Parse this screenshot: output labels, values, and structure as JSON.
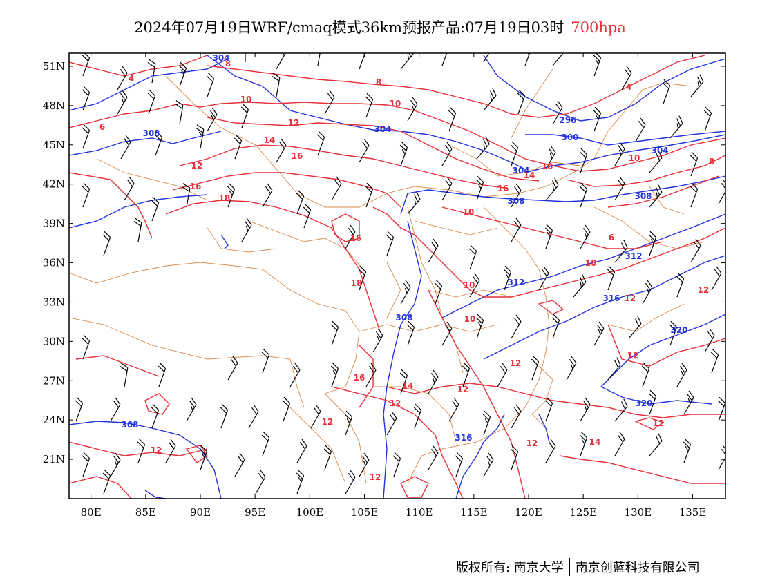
{
  "title": {
    "main": "2024年07月19日WRF/cmaq模式36km预报产品:07月19日03时",
    "level": "700hpa"
  },
  "axes": {
    "lon_labels": [
      "80E",
      "85E",
      "90E",
      "95E",
      "100E",
      "105E",
      "110E",
      "115E",
      "120E",
      "125E",
      "130E",
      "135E"
    ],
    "lat_labels": [
      "51N",
      "48N",
      "45N",
      "42N",
      "39N",
      "36N",
      "33N",
      "30N",
      "27N",
      "24N",
      "21N"
    ],
    "lon_range": [
      78,
      138
    ],
    "lat_range": [
      18,
      52
    ]
  },
  "contours": {
    "temperature_color": "#e8303a",
    "height_color": "#2233dd",
    "border_color": "#d9894a",
    "temperature_labels": [
      "4",
      "8",
      "8",
      "4",
      "6",
      "10",
      "10",
      "12",
      "14",
      "16",
      "12",
      "16",
      "18",
      "16",
      "18",
      "16",
      "14",
      "10",
      "10",
      "8",
      "6",
      "10",
      "12",
      "12",
      "10",
      "10",
      "10",
      "12",
      "16",
      "14",
      "12",
      "12",
      "12",
      "12",
      "12",
      "14",
      "12",
      "12",
      "12",
      "12"
    ],
    "height_labels": [
      "304",
      "308",
      "304",
      "296",
      "300",
      "304",
      "304",
      "308",
      "308",
      "312",
      "312",
      "316",
      "308",
      "320",
      "320",
      "308",
      "316"
    ]
  },
  "footer": {
    "left": "版权所有: 南京大学",
    "right": "南京创蓝科技有限公司"
  }
}
